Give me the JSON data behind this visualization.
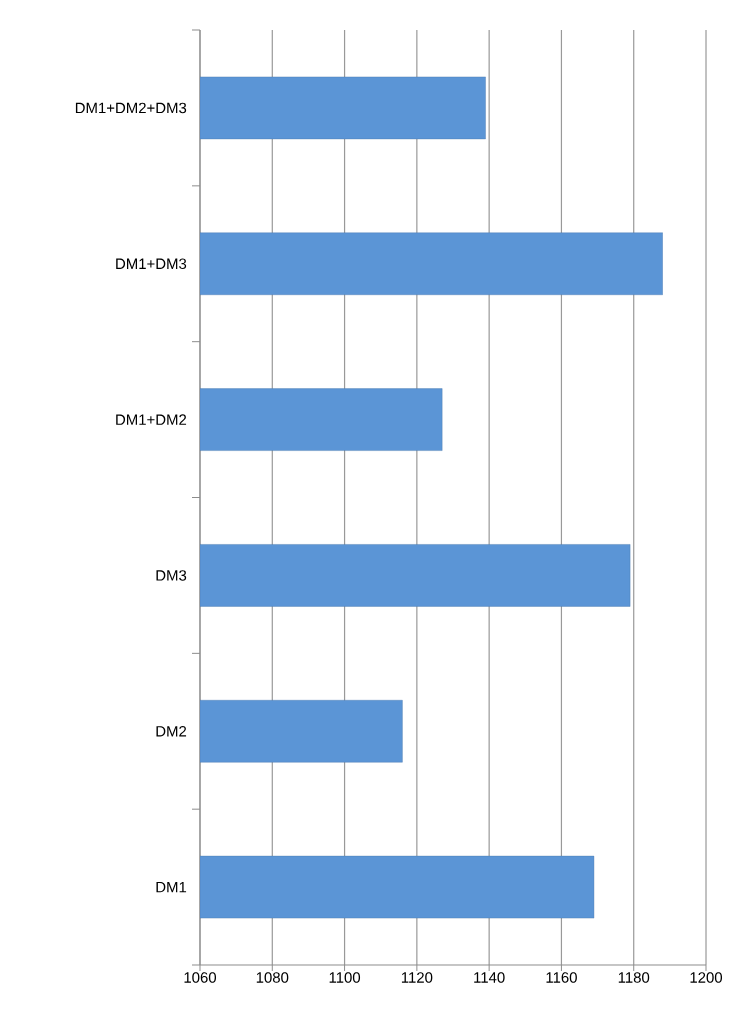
{
  "chart_data": {
    "type": "bar",
    "orientation": "horizontal",
    "categories": [
      "DM1+DM2+DM3",
      "DM1+DM3",
      "DM1+DM2",
      "DM3",
      "DM2",
      "DM1"
    ],
    "values": [
      1139,
      1188,
      1127,
      1179,
      1116,
      1169
    ],
    "color": "#5b95d6",
    "xlim": [
      1060,
      1200
    ],
    "xticks": [
      1060,
      1080,
      1100,
      1120,
      1140,
      1160,
      1180,
      1200
    ],
    "grid": "x"
  }
}
